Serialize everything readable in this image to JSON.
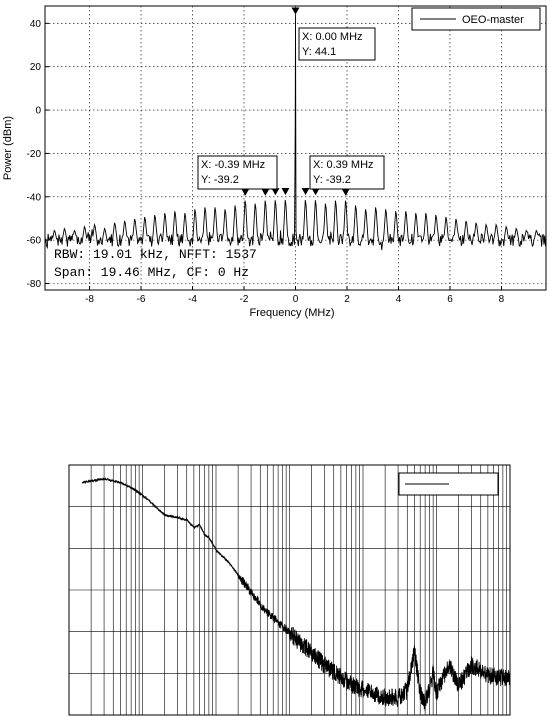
{
  "chart_data": [
    {
      "type": "line",
      "xlabel": "Frequency (MHz)",
      "ylabel": "Power (dBm)",
      "xlim": [
        -9.73,
        9.73
      ],
      "ylim": [
        -83,
        48
      ],
      "xticks": [
        -8,
        -6,
        -4,
        -2,
        0,
        2,
        4,
        6,
        8
      ],
      "yticks": [
        40,
        20,
        0,
        -20,
        -40,
        -60,
        -80
      ],
      "grid": true,
      "legend": {
        "placement": "top-right",
        "entries": [
          "OEO-master"
        ]
      },
      "noise_floor_dbm": -60,
      "carrier": {
        "x": 0.0,
        "y": 44.1
      },
      "sidemode_spacing_mhz": 0.39,
      "sidemodes_x": [
        -9.36,
        -8.97,
        -8.58,
        -8.19,
        -7.8,
        -7.41,
        -7.02,
        -6.63,
        -6.24,
        -5.85,
        -5.46,
        -5.07,
        -4.68,
        -4.29,
        -3.9,
        -3.51,
        -3.12,
        -2.73,
        -2.34,
        -1.95,
        -1.56,
        -1.17,
        -0.78,
        -0.39,
        0.39,
        0.78,
        1.17,
        1.56,
        1.95,
        2.34,
        2.73,
        3.12,
        3.51,
        3.9,
        4.29,
        4.68,
        5.07,
        5.46,
        5.85,
        6.24,
        6.63,
        7.02,
        7.41,
        7.8,
        8.19,
        8.58,
        8.97,
        9.36
      ],
      "sidemodes_y": [
        -55,
        -54,
        -55,
        -53,
        -52,
        -54,
        -51,
        -50,
        -49,
        -48,
        -47,
        -46,
        -45,
        -46,
        -44,
        -43,
        -43,
        -44,
        -42,
        -39.5,
        -41,
        -39.5,
        -39.3,
        -39.2,
        -39.2,
        -39.3,
        -41,
        -39.5,
        -39.5,
        -42,
        -44,
        -43,
        -44,
        -45,
        -45,
        -46,
        -46,
        -47,
        -48,
        -49,
        -50,
        -51,
        -52,
        -52,
        -53,
        -54,
        -55,
        -55
      ],
      "markers_x": [
        -1.95,
        -1.17,
        -0.78,
        -0.39,
        0.39,
        0.78,
        1.95
      ],
      "markers_y": [
        -39.5,
        -39.5,
        -39.3,
        -39.2,
        -39.2,
        -39.3,
        -39.5
      ],
      "datatips": [
        {
          "x_label": "X: 0.00 MHz",
          "y_label": "Y: 44.1"
        },
        {
          "x_label": "X: -0.39 MHz",
          "y_label": "Y: -39.2"
        },
        {
          "x_label": "X: 0.39 MHz",
          "y_label": "Y: -39.2"
        }
      ],
      "annotation": {
        "line1": "RBW: 19.01 kHz, NFFT: 1537",
        "line2": "Span: 19.46 MHz, CF: 0 Hz"
      }
    },
    {
      "type": "line",
      "xscale": "log",
      "xlim": [
        1,
        1000000
      ],
      "ylim": [
        0,
        1
      ],
      "grid": true,
      "legend": {
        "placement": "top-right",
        "entries": [
          ""
        ]
      },
      "x": [
        1.5,
        3,
        5,
        8,
        12,
        20,
        30,
        40,
        50,
        60,
        70,
        80,
        100,
        150,
        200,
        300,
        500,
        700,
        1000,
        1500,
        2000,
        3000,
        5000,
        7000,
        10000,
        15000,
        20000,
        30000,
        40000,
        50000,
        60000,
        70000,
        80000,
        90000,
        100000,
        150000,
        200000,
        300000,
        500000,
        700000,
        1000000
      ],
      "y": [
        0.93,
        0.945,
        0.93,
        0.9,
        0.86,
        0.8,
        0.79,
        0.78,
        0.75,
        0.76,
        0.72,
        0.71,
        0.66,
        0.61,
        0.56,
        0.49,
        0.41,
        0.37,
        0.33,
        0.28,
        0.25,
        0.2,
        0.15,
        0.12,
        0.1,
        0.08,
        0.07,
        0.07,
        0.1,
        0.26,
        0.09,
        0.05,
        0.1,
        0.17,
        0.09,
        0.2,
        0.12,
        0.2,
        0.16,
        0.15,
        0.15
      ],
      "noise_band": 0.03
    }
  ]
}
